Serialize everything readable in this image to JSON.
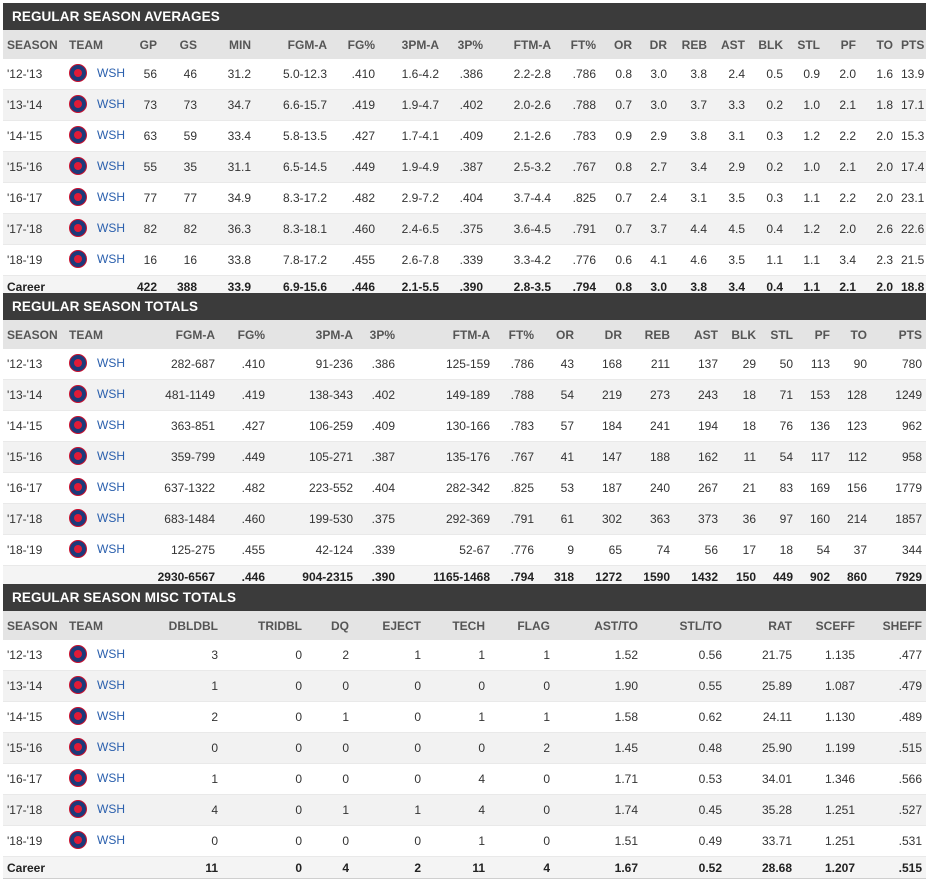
{
  "team": {
    "abbr": "WSH",
    "logo_icon": "wizards-logo-icon"
  },
  "averages": {
    "title": "REGULAR SEASON AVERAGES",
    "columns": [
      "SEASON",
      "TEAM",
      "GP",
      "GS",
      "MIN",
      "FGM-A",
      "FG%",
      "3PM-A",
      "3P%",
      "FTM-A",
      "FT%",
      "OR",
      "DR",
      "REB",
      "AST",
      "BLK",
      "STL",
      "PF",
      "TO",
      "PTS"
    ],
    "rows": [
      [
        "'12-'13",
        "WSH",
        "56",
        "46",
        "31.2",
        "5.0-12.3",
        ".410",
        "1.6-4.2",
        ".386",
        "2.2-2.8",
        ".786",
        "0.8",
        "3.0",
        "3.8",
        "2.4",
        "0.5",
        "0.9",
        "2.0",
        "1.6",
        "13.9"
      ],
      [
        "'13-'14",
        "WSH",
        "73",
        "73",
        "34.7",
        "6.6-15.7",
        ".419",
        "1.9-4.7",
        ".402",
        "2.0-2.6",
        ".788",
        "0.7",
        "3.0",
        "3.7",
        "3.3",
        "0.2",
        "1.0",
        "2.1",
        "1.8",
        "17.1"
      ],
      [
        "'14-'15",
        "WSH",
        "63",
        "59",
        "33.4",
        "5.8-13.5",
        ".427",
        "1.7-4.1",
        ".409",
        "2.1-2.6",
        ".783",
        "0.9",
        "2.9",
        "3.8",
        "3.1",
        "0.3",
        "1.2",
        "2.2",
        "2.0",
        "15.3"
      ],
      [
        "'15-'16",
        "WSH",
        "55",
        "35",
        "31.1",
        "6.5-14.5",
        ".449",
        "1.9-4.9",
        ".387",
        "2.5-3.2",
        ".767",
        "0.8",
        "2.7",
        "3.4",
        "2.9",
        "0.2",
        "1.0",
        "2.1",
        "2.0",
        "17.4"
      ],
      [
        "'16-'17",
        "WSH",
        "77",
        "77",
        "34.9",
        "8.3-17.2",
        ".482",
        "2.9-7.2",
        ".404",
        "3.7-4.4",
        ".825",
        "0.7",
        "2.4",
        "3.1",
        "3.5",
        "0.3",
        "1.1",
        "2.2",
        "2.0",
        "23.1"
      ],
      [
        "'17-'18",
        "WSH",
        "82",
        "82",
        "36.3",
        "8.3-18.1",
        ".460",
        "2.4-6.5",
        ".375",
        "3.6-4.5",
        ".791",
        "0.7",
        "3.7",
        "4.4",
        "4.5",
        "0.4",
        "1.2",
        "2.0",
        "2.6",
        "22.6"
      ],
      [
        "'18-'19",
        "WSH",
        "16",
        "16",
        "33.8",
        "7.8-17.2",
        ".455",
        "2.6-7.8",
        ".339",
        "3.3-4.2",
        ".776",
        "0.6",
        "4.1",
        "4.6",
        "3.5",
        "1.1",
        "1.1",
        "3.4",
        "2.3",
        "21.5"
      ]
    ],
    "career": [
      "Career",
      "",
      "422",
      "388",
      "33.9",
      "6.9-15.6",
      ".446",
      "2.1-5.5",
      ".390",
      "2.8-3.5",
      ".794",
      "0.8",
      "3.0",
      "3.8",
      "3.4",
      "0.4",
      "1.1",
      "2.1",
      "2.0",
      "18.8"
    ]
  },
  "totals": {
    "title": "REGULAR SEASON TOTALS",
    "columns": [
      "SEASON",
      "TEAM",
      "FGM-A",
      "FG%",
      "3PM-A",
      "3P%",
      "FTM-A",
      "FT%",
      "OR",
      "DR",
      "REB",
      "AST",
      "BLK",
      "STL",
      "PF",
      "TO",
      "PTS"
    ],
    "rows": [
      [
        "'12-'13",
        "WSH",
        "282-687",
        ".410",
        "91-236",
        ".386",
        "125-159",
        ".786",
        "43",
        "168",
        "211",
        "137",
        "29",
        "50",
        "113",
        "90",
        "780"
      ],
      [
        "'13-'14",
        "WSH",
        "481-1149",
        ".419",
        "138-343",
        ".402",
        "149-189",
        ".788",
        "54",
        "219",
        "273",
        "243",
        "18",
        "71",
        "153",
        "128",
        "1249"
      ],
      [
        "'14-'15",
        "WSH",
        "363-851",
        ".427",
        "106-259",
        ".409",
        "130-166",
        ".783",
        "57",
        "184",
        "241",
        "194",
        "18",
        "76",
        "136",
        "123",
        "962"
      ],
      [
        "'15-'16",
        "WSH",
        "359-799",
        ".449",
        "105-271",
        ".387",
        "135-176",
        ".767",
        "41",
        "147",
        "188",
        "162",
        "11",
        "54",
        "117",
        "112",
        "958"
      ],
      [
        "'16-'17",
        "WSH",
        "637-1322",
        ".482",
        "223-552",
        ".404",
        "282-342",
        ".825",
        "53",
        "187",
        "240",
        "267",
        "21",
        "83",
        "169",
        "156",
        "1779"
      ],
      [
        "'17-'18",
        "WSH",
        "683-1484",
        ".460",
        "199-530",
        ".375",
        "292-369",
        ".791",
        "61",
        "302",
        "363",
        "373",
        "36",
        "97",
        "160",
        "214",
        "1857"
      ],
      [
        "'18-'19",
        "WSH",
        "125-275",
        ".455",
        "42-124",
        ".339",
        "52-67",
        ".776",
        "9",
        "65",
        "74",
        "56",
        "17",
        "18",
        "54",
        "37",
        "344"
      ]
    ],
    "career": [
      "",
      "",
      "2930-6567",
      ".446",
      "904-2315",
      ".390",
      "1165-1468",
      ".794",
      "318",
      "1272",
      "1590",
      "1432",
      "150",
      "449",
      "902",
      "860",
      "7929"
    ]
  },
  "misc": {
    "title": "REGULAR SEASON MISC TOTALS",
    "columns": [
      "SEASON",
      "TEAM",
      "DBLDBL",
      "TRIDBL",
      "DQ",
      "EJECT",
      "TECH",
      "FLAG",
      "AST/TO",
      "STL/TO",
      "RAT",
      "SCEFF",
      "SHEFF"
    ],
    "rows": [
      [
        "'12-'13",
        "WSH",
        "3",
        "0",
        "2",
        "1",
        "1",
        "1",
        "1.52",
        "0.56",
        "21.75",
        "1.135",
        ".477"
      ],
      [
        "'13-'14",
        "WSH",
        "1",
        "0",
        "0",
        "0",
        "0",
        "0",
        "1.90",
        "0.55",
        "25.89",
        "1.087",
        ".479"
      ],
      [
        "'14-'15",
        "WSH",
        "2",
        "0",
        "1",
        "0",
        "1",
        "1",
        "1.58",
        "0.62",
        "24.11",
        "1.130",
        ".489"
      ],
      [
        "'15-'16",
        "WSH",
        "0",
        "0",
        "0",
        "0",
        "0",
        "2",
        "1.45",
        "0.48",
        "25.90",
        "1.199",
        ".515"
      ],
      [
        "'16-'17",
        "WSH",
        "1",
        "0",
        "0",
        "0",
        "4",
        "0",
        "1.71",
        "0.53",
        "34.01",
        "1.346",
        ".566"
      ],
      [
        "'17-'18",
        "WSH",
        "4",
        "0",
        "1",
        "1",
        "4",
        "0",
        "1.74",
        "0.45",
        "35.28",
        "1.251",
        ".527"
      ],
      [
        "'18-'19",
        "WSH",
        "0",
        "0",
        "0",
        "0",
        "1",
        "0",
        "1.51",
        "0.49",
        "33.71",
        "1.251",
        ".531"
      ]
    ],
    "career": [
      "Career",
      "",
      "11",
      "0",
      "4",
      "2",
      "11",
      "4",
      "1.67",
      "0.52",
      "28.68",
      "1.207",
      ".515"
    ]
  }
}
